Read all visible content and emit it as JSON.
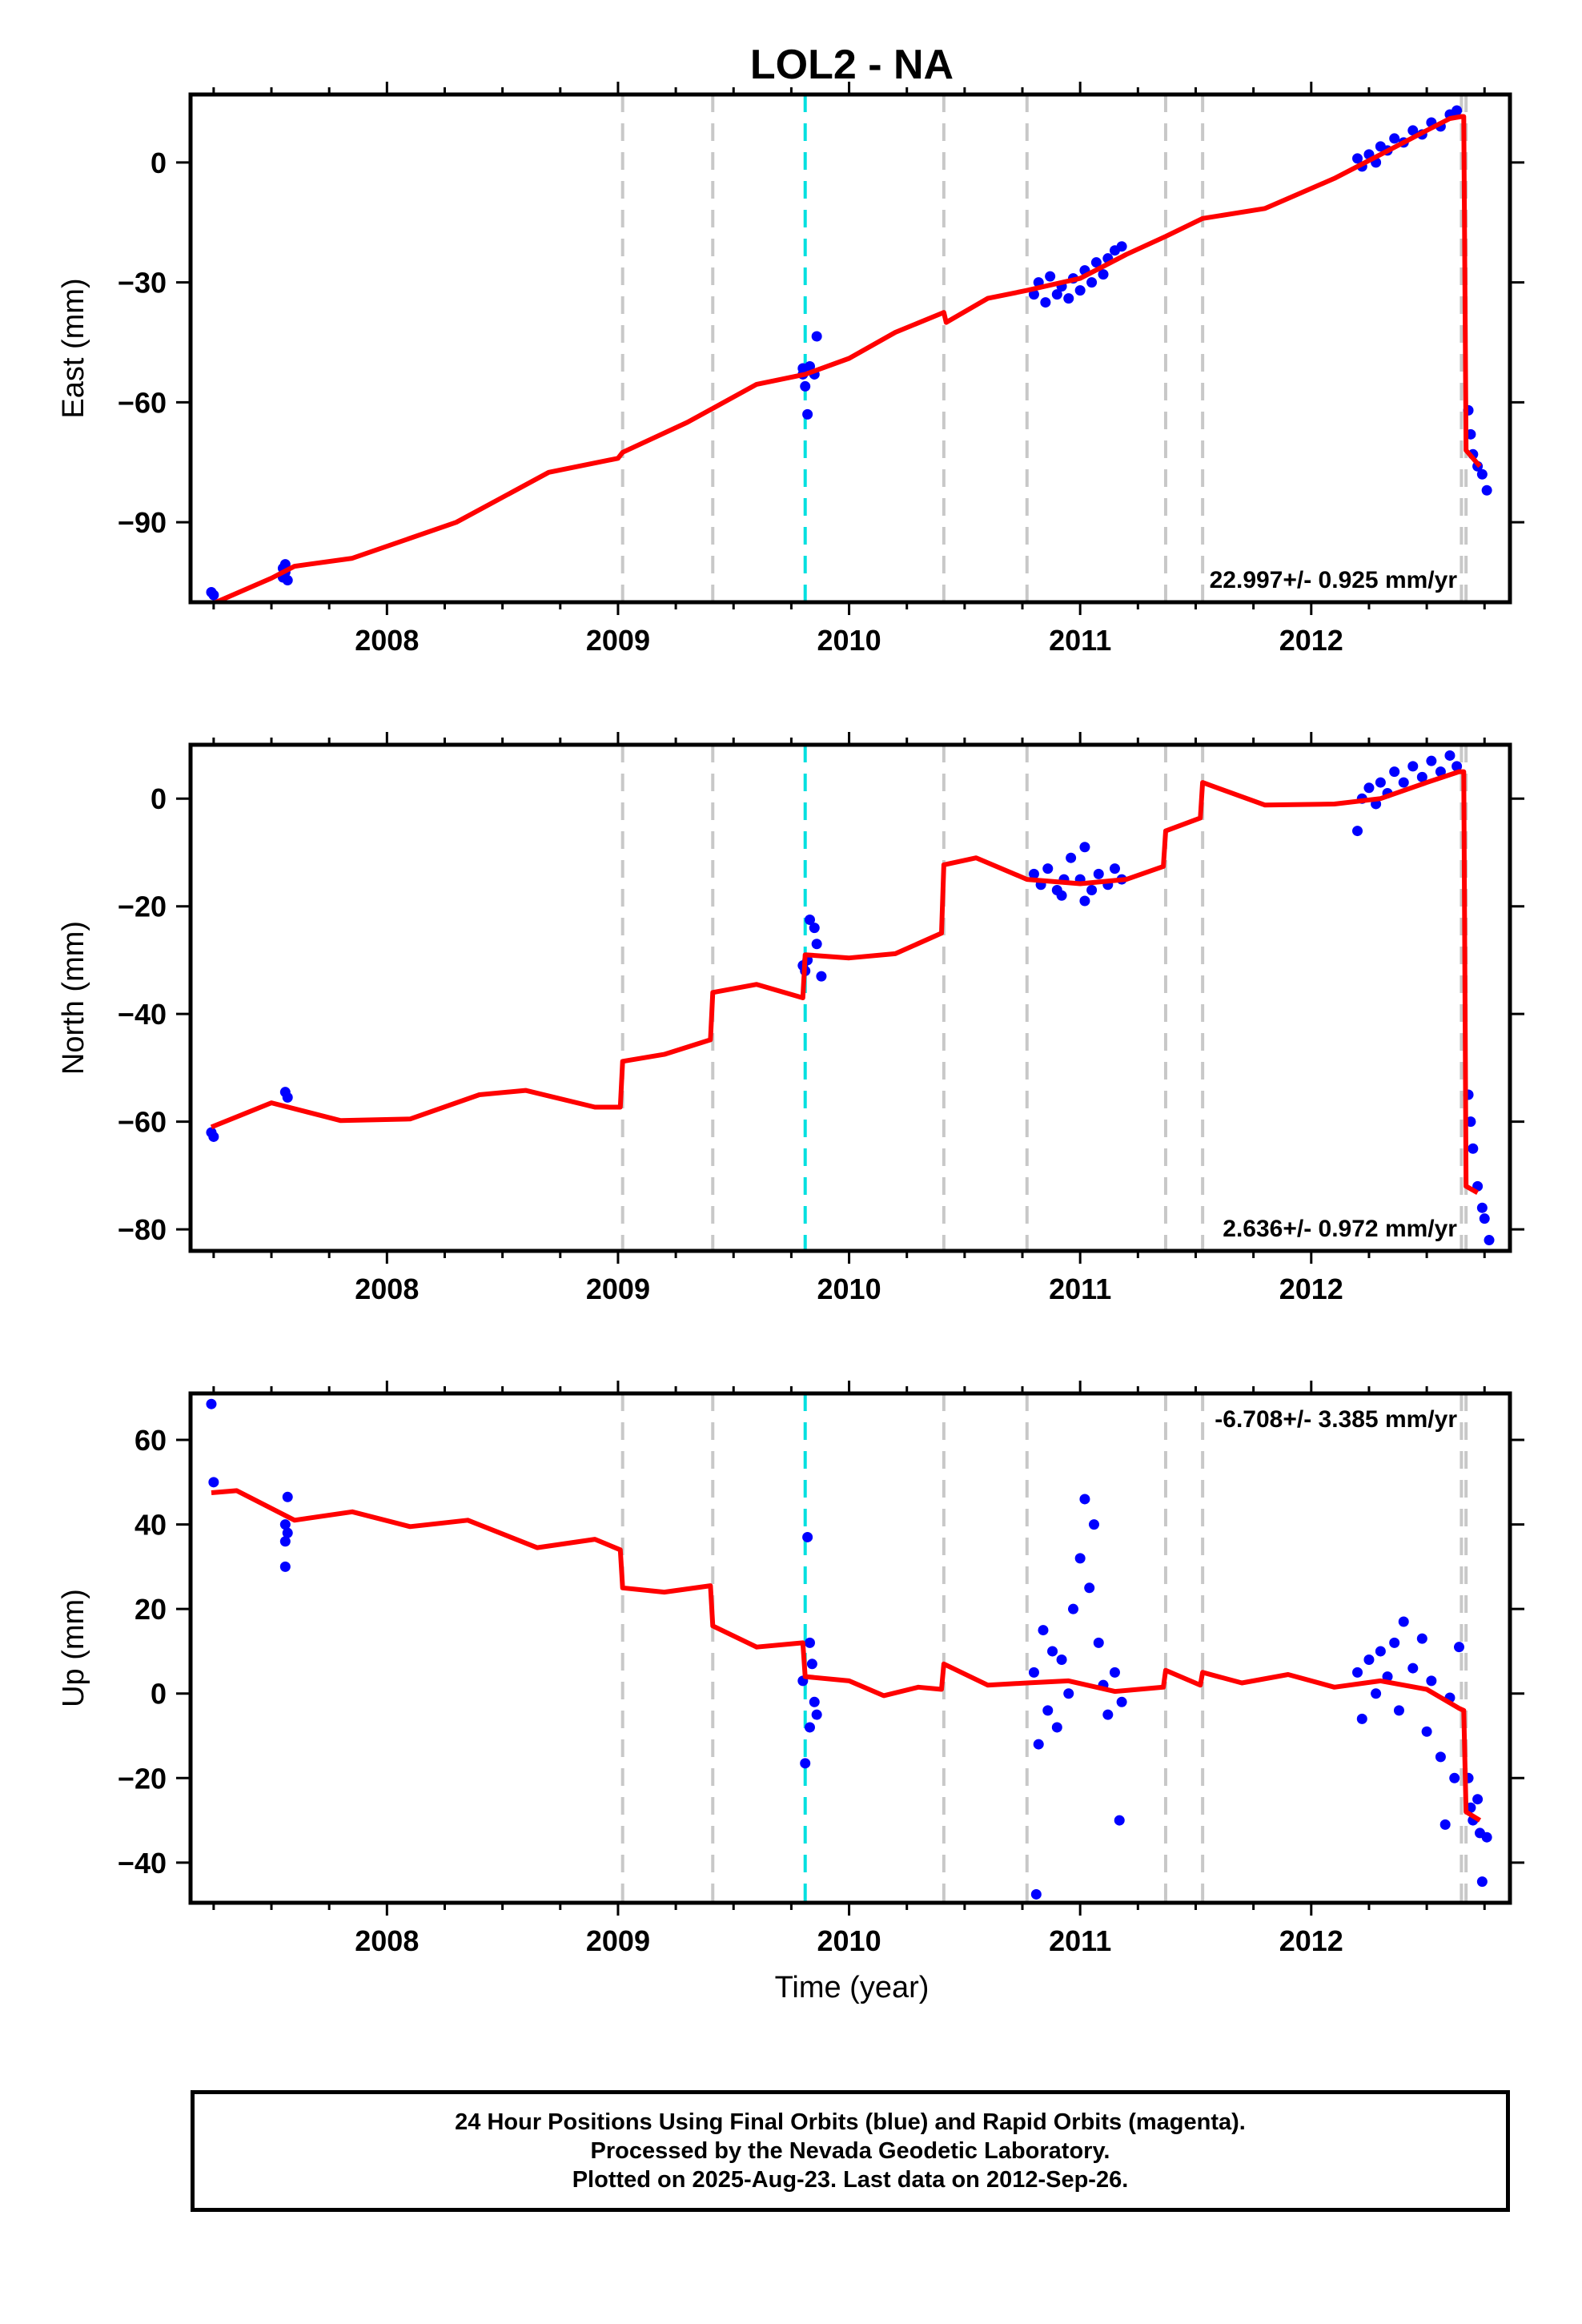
{
  "title": "LOL2 - NA",
  "xlabel": "Time (year)",
  "colors": {
    "data": "#0000ff",
    "model": "#ff0000",
    "offset_line": "#c8c8c8",
    "highlight_line": "#00e0e0"
  },
  "x_ticks": [
    2008,
    2009,
    2010,
    2011,
    2012
  ],
  "offset_lines": [
    2009.02,
    2009.41,
    2010.41,
    2010.77,
    2011.37,
    2011.53,
    2012.65,
    2012.67
  ],
  "highlight_line": 2009.81,
  "chart_data": [
    {
      "type": "scatter",
      "name": "east",
      "ylabel": "East (mm)",
      "xlim": [
        2007.15,
        2012.86
      ],
      "ylim": [
        -110,
        17
      ],
      "y_ticks": [
        0,
        -30,
        -60,
        -90
      ],
      "rate": "22.997+/- 0.925 mm/yr",
      "rate_position": "bottom-right",
      "model_x": [
        2007.24,
        2007.5,
        2007.6,
        2007.85,
        2008.3,
        2008.7,
        2009.0,
        2009.02,
        2009.3,
        2009.6,
        2009.81,
        2010.0,
        2010.2,
        2010.41,
        2010.42,
        2010.6,
        2010.77,
        2011.0,
        2011.2,
        2011.37,
        2011.53,
        2011.8,
        2012.1,
        2012.3,
        2012.5,
        2012.6,
        2012.65,
        2012.66,
        2012.67,
        2012.73
      ],
      "model_y": [
        -110.5,
        -104,
        -101,
        -99,
        -90,
        -77.5,
        -74,
        -72.5,
        -65,
        -55.5,
        -53,
        -49,
        -42.5,
        -37.5,
        -40,
        -34,
        -32,
        -29,
        -23,
        -18.5,
        -14,
        -11.5,
        -4,
        2,
        8,
        11,
        11.5,
        11.5,
        -72,
        -76
      ],
      "points": [
        [
          2007.24,
          -107.5
        ],
        [
          2007.25,
          -108.2
        ],
        [
          2007.55,
          -101.5
        ],
        [
          2007.55,
          -103.8
        ],
        [
          2007.56,
          -102.5
        ],
        [
          2007.57,
          -104.5
        ],
        [
          2007.56,
          -100.5
        ],
        [
          2009.8,
          -51.5
        ],
        [
          2009.81,
          -56
        ],
        [
          2009.82,
          -63
        ],
        [
          2009.83,
          -51
        ],
        [
          2009.85,
          -53
        ],
        [
          2009.86,
          -43.5
        ],
        [
          2009.8,
          -53
        ],
        [
          2010.8,
          -33
        ],
        [
          2010.82,
          -30
        ],
        [
          2010.85,
          -35
        ],
        [
          2010.87,
          -28.5
        ],
        [
          2010.9,
          -33
        ],
        [
          2010.92,
          -31
        ],
        [
          2010.95,
          -34
        ],
        [
          2010.97,
          -29
        ],
        [
          2011.0,
          -32
        ],
        [
          2011.02,
          -27
        ],
        [
          2011.05,
          -30
        ],
        [
          2011.07,
          -25
        ],
        [
          2011.1,
          -28
        ],
        [
          2011.12,
          -24
        ],
        [
          2011.15,
          -22
        ],
        [
          2011.18,
          -21
        ],
        [
          2012.2,
          1
        ],
        [
          2012.22,
          -1
        ],
        [
          2012.25,
          2
        ],
        [
          2012.28,
          0
        ],
        [
          2012.3,
          4
        ],
        [
          2012.33,
          3
        ],
        [
          2012.36,
          6
        ],
        [
          2012.4,
          5
        ],
        [
          2012.44,
          8
        ],
        [
          2012.48,
          7
        ],
        [
          2012.52,
          10
        ],
        [
          2012.56,
          9
        ],
        [
          2012.6,
          12
        ],
        [
          2012.63,
          13
        ],
        [
          2012.68,
          -62
        ],
        [
          2012.69,
          -68
        ],
        [
          2012.7,
          -73
        ],
        [
          2012.72,
          -76
        ],
        [
          2012.74,
          -78
        ],
        [
          2012.76,
          -82
        ]
      ]
    },
    {
      "type": "scatter",
      "name": "north",
      "ylabel": "North (mm)",
      "xlim": [
        2007.15,
        2012.86
      ],
      "ylim": [
        -84,
        10
      ],
      "y_ticks": [
        0,
        -20,
        -40,
        -60,
        -80
      ],
      "rate": "2.636+/- 0.972 mm/yr",
      "rate_position": "bottom-right",
      "model_x": [
        2007.24,
        2007.5,
        2007.8,
        2008.1,
        2008.4,
        2008.6,
        2008.9,
        2009.01,
        2009.02,
        2009.2,
        2009.4,
        2009.41,
        2009.6,
        2009.8,
        2009.81,
        2010.0,
        2010.2,
        2010.4,
        2010.41,
        2010.55,
        2010.77,
        2011.0,
        2011.2,
        2011.36,
        2011.37,
        2011.52,
        2011.53,
        2011.8,
        2012.1,
        2012.3,
        2012.5,
        2012.64,
        2012.66,
        2012.67,
        2012.72
      ],
      "model_y": [
        -61,
        -56.5,
        -59.8,
        -59.5,
        -55,
        -54.2,
        -57.3,
        -57.3,
        -48.8,
        -47.5,
        -44.8,
        -36,
        -34.5,
        -37,
        -29,
        -29.6,
        -28.8,
        -25,
        -12.3,
        -11,
        -15,
        -15.8,
        -15,
        -12.6,
        -6,
        -3.6,
        3,
        -1.2,
        -1,
        0,
        3,
        5,
        5,
        -72,
        -73.2
      ],
      "points": [
        [
          2007.24,
          -62
        ],
        [
          2007.25,
          -62.8
        ],
        [
          2007.56,
          -54.5
        ],
        [
          2007.57,
          -55.5
        ],
        [
          2009.8,
          -31
        ],
        [
          2009.81,
          -32
        ],
        [
          2009.82,
          -30
        ],
        [
          2009.83,
          -22.5
        ],
        [
          2009.85,
          -24
        ],
        [
          2009.86,
          -27
        ],
        [
          2009.88,
          -33
        ],
        [
          2010.8,
          -14
        ],
        [
          2010.83,
          -16
        ],
        [
          2010.86,
          -13
        ],
        [
          2010.9,
          -17
        ],
        [
          2010.93,
          -15
        ],
        [
          2010.96,
          -11
        ],
        [
          2011.0,
          -15
        ],
        [
          2011.02,
          -9
        ],
        [
          2011.05,
          -17
        ],
        [
          2011.08,
          -14
        ],
        [
          2011.12,
          -16
        ],
        [
          2011.15,
          -13
        ],
        [
          2011.18,
          -15
        ],
        [
          2011.02,
          -19
        ],
        [
          2010.92,
          -18
        ],
        [
          2012.2,
          -6
        ],
        [
          2012.22,
          0
        ],
        [
          2012.25,
          2
        ],
        [
          2012.28,
          -1
        ],
        [
          2012.3,
          3
        ],
        [
          2012.33,
          1
        ],
        [
          2012.36,
          5
        ],
        [
          2012.4,
          3
        ],
        [
          2012.44,
          6
        ],
        [
          2012.48,
          4
        ],
        [
          2012.52,
          7
        ],
        [
          2012.56,
          5
        ],
        [
          2012.6,
          8
        ],
        [
          2012.63,
          6
        ],
        [
          2012.68,
          -55
        ],
        [
          2012.69,
          -60
        ],
        [
          2012.7,
          -65
        ],
        [
          2012.72,
          -72
        ],
        [
          2012.74,
          -76
        ],
        [
          2012.75,
          -78
        ],
        [
          2012.77,
          -82
        ]
      ]
    },
    {
      "type": "scatter",
      "name": "up",
      "ylabel": "Up (mm)",
      "xlim": [
        2007.15,
        2012.86
      ],
      "ylim": [
        -49.5,
        71
      ],
      "y_ticks": [
        60,
        40,
        20,
        0,
        -20,
        -40
      ],
      "rate": "-6.708+/- 3.385 mm/yr",
      "rate_position": "top-right",
      "model_x": [
        2007.24,
        2007.35,
        2007.6,
        2007.85,
        2008.1,
        2008.35,
        2008.65,
        2008.9,
        2009.01,
        2009.02,
        2009.2,
        2009.4,
        2009.41,
        2009.6,
        2009.8,
        2009.81,
        2010.0,
        2010.15,
        2010.3,
        2010.4,
        2010.41,
        2010.6,
        2010.77,
        2010.95,
        2011.15,
        2011.36,
        2011.37,
        2011.52,
        2011.53,
        2011.7,
        2011.9,
        2012.1,
        2012.3,
        2012.5,
        2012.64,
        2012.66,
        2012.67,
        2012.73
      ],
      "model_y": [
        47.5,
        48,
        41,
        43,
        39.5,
        41,
        34.5,
        36.5,
        34,
        25,
        24,
        25.5,
        16,
        11,
        12,
        4,
        3,
        -0.5,
        1.5,
        1,
        7,
        2,
        2.5,
        3,
        0.5,
        1.5,
        5.5,
        2,
        5,
        2.5,
        4.5,
        1.5,
        3,
        1,
        -3.5,
        -4,
        -28,
        -30
      ],
      "points": [
        [
          2007.24,
          68.5
        ],
        [
          2007.25,
          50
        ],
        [
          2007.56,
          36
        ],
        [
          2007.57,
          38
        ],
        [
          2007.56,
          40
        ],
        [
          2007.57,
          46.5
        ],
        [
          2007.56,
          30
        ],
        [
          2009.8,
          3
        ],
        [
          2009.81,
          -16.5
        ],
        [
          2009.82,
          37
        ],
        [
          2009.83,
          12
        ],
        [
          2009.84,
          7
        ],
        [
          2009.85,
          -2
        ],
        [
          2009.86,
          -5
        ],
        [
          2009.83,
          -8
        ],
        [
          2010.8,
          5
        ],
        [
          2010.82,
          -12
        ],
        [
          2010.84,
          15
        ],
        [
          2010.86,
          -4
        ],
        [
          2010.88,
          10
        ],
        [
          2010.9,
          -8
        ],
        [
          2010.92,
          8
        ],
        [
          2010.95,
          0
        ],
        [
          2010.97,
          20
        ],
        [
          2011.0,
          32
        ],
        [
          2011.02,
          46
        ],
        [
          2011.04,
          25
        ],
        [
          2011.06,
          40
        ],
        [
          2011.08,
          12
        ],
        [
          2011.1,
          2
        ],
        [
          2011.12,
          -5
        ],
        [
          2011.15,
          5
        ],
        [
          2011.17,
          -30
        ],
        [
          2011.18,
          -2
        ],
        [
          2010.81,
          -47.5
        ],
        [
          2012.2,
          5
        ],
        [
          2012.22,
          -6
        ],
        [
          2012.25,
          8
        ],
        [
          2012.28,
          0
        ],
        [
          2012.3,
          10
        ],
        [
          2012.33,
          4
        ],
        [
          2012.36,
          12
        ],
        [
          2012.38,
          -4
        ],
        [
          2012.4,
          17
        ],
        [
          2012.44,
          6
        ],
        [
          2012.48,
          13
        ],
        [
          2012.5,
          -9
        ],
        [
          2012.52,
          3
        ],
        [
          2012.56,
          -15
        ],
        [
          2012.58,
          -31
        ],
        [
          2012.6,
          -1
        ],
        [
          2012.62,
          -20
        ],
        [
          2012.64,
          11
        ],
        [
          2012.68,
          -20
        ],
        [
          2012.69,
          -27
        ],
        [
          2012.7,
          -30
        ],
        [
          2012.72,
          -25
        ],
        [
          2012.73,
          -33
        ],
        [
          2012.74,
          -44.5
        ],
        [
          2012.76,
          -34
        ]
      ]
    }
  ],
  "caption": [
    "24 Hour Positions Using Final Orbits (blue) and Rapid Orbits (magenta).",
    "Processed by the Nevada Geodetic Laboratory.",
    "Plotted on 2025-Aug-23. Last data on 2012-Sep-26."
  ]
}
